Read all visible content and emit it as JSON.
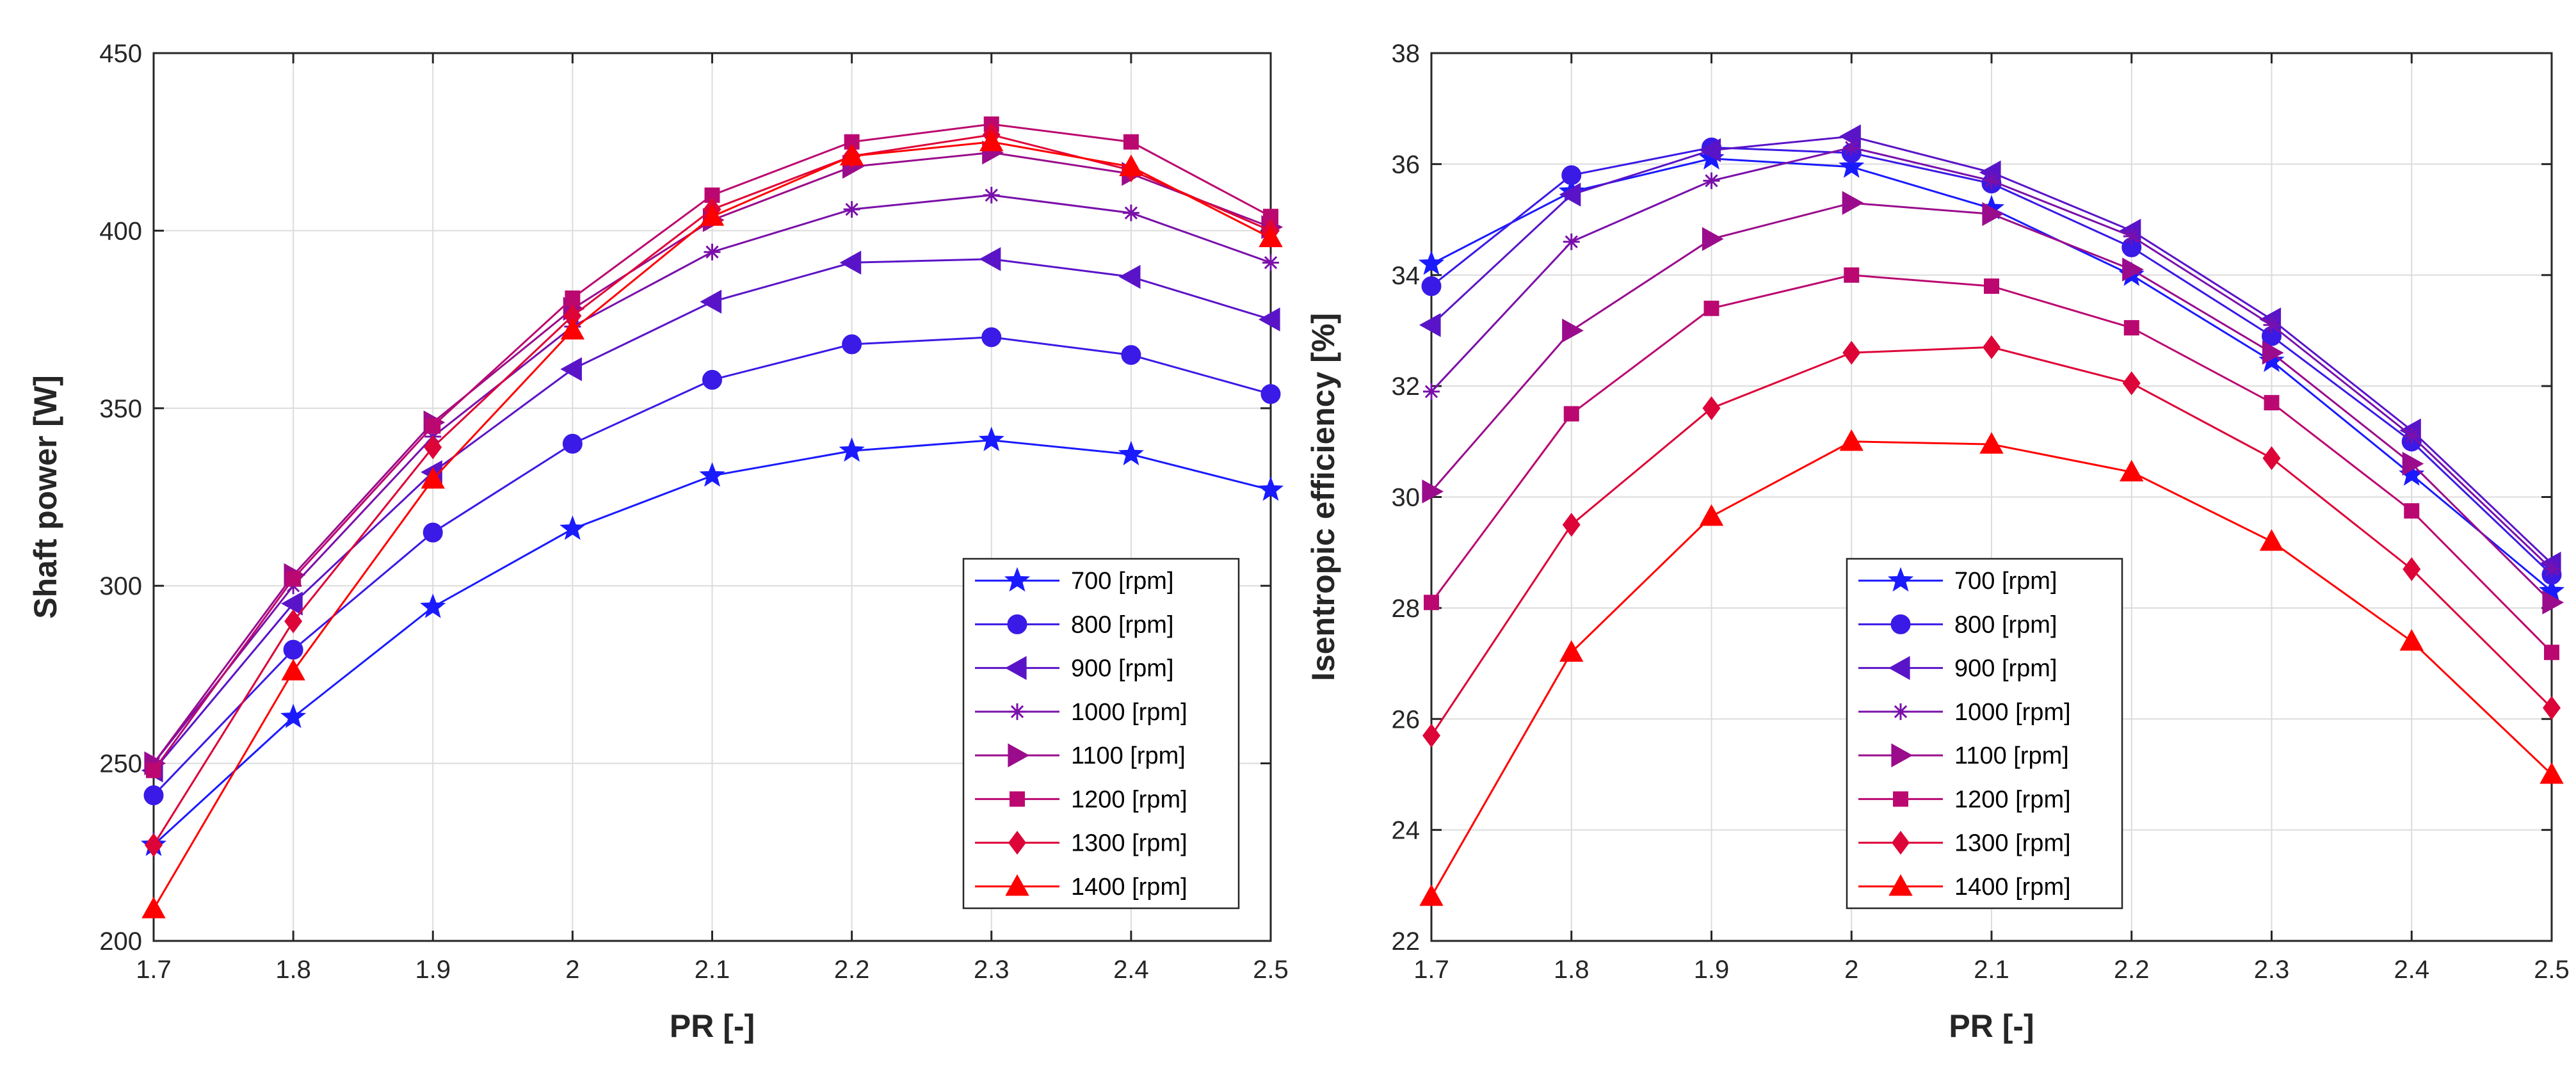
{
  "chart_data": [
    {
      "type": "line",
      "title": "",
      "xlabel": "PR [-]",
      "ylabel": "Shaft power [W]",
      "xlim": [
        1.7,
        2.5
      ],
      "ylim": [
        200,
        450
      ],
      "xticks": [
        1.7,
        1.8,
        1.9,
        2,
        2.1,
        2.2,
        2.3,
        2.4,
        2.5
      ],
      "yticks": [
        200,
        250,
        300,
        350,
        400,
        450
      ],
      "xtick_labels": [
        "1.7",
        "1.8",
        "1.9",
        "2",
        "2.1",
        "2.2",
        "2.3",
        "2.4",
        "2.5"
      ],
      "ytick_labels": [
        "200",
        "250",
        "300",
        "350",
        "400",
        "450"
      ],
      "grid": true,
      "legend_position": "bottom-right",
      "x": [
        1.7,
        1.8,
        1.9,
        2.0,
        2.1,
        2.2,
        2.3,
        2.4,
        2.5
      ],
      "series": [
        {
          "name": "700 [rpm]",
          "color": "#1a1aff",
          "marker": "star",
          "values": [
            227,
            263,
            294,
            316,
            331,
            338,
            341,
            337,
            327
          ]
        },
        {
          "name": "800 [rpm]",
          "color": "#3a1ae6",
          "marker": "circle",
          "values": [
            241,
            282,
            315,
            340,
            358,
            368,
            370,
            365,
            354
          ]
        },
        {
          "name": "900 [rpm]",
          "color": "#5a14c8",
          "marker": "triangle-left",
          "values": [
            248,
            295,
            332,
            361,
            380,
            391,
            392,
            387,
            375
          ]
        },
        {
          "name": "1000 [rpm]",
          "color": "#7a10aa",
          "marker": "asterisk",
          "values": [
            250,
            300,
            342,
            373,
            394,
            406,
            410,
            405,
            391
          ]
        },
        {
          "name": "1100 [rpm]",
          "color": "#9a0c8c",
          "marker": "triangle-right",
          "values": [
            250,
            303,
            346,
            378,
            403,
            418,
            422,
            416,
            401
          ]
        },
        {
          "name": "1200 [rpm]",
          "color": "#bb0870",
          "marker": "square",
          "values": [
            248,
            302,
            345,
            381,
            410,
            425,
            430,
            425,
            404
          ]
        },
        {
          "name": "1300 [rpm]",
          "color": "#dd0438",
          "marker": "diamond",
          "values": [
            227,
            290,
            339,
            376,
            406,
            421,
            427,
            417,
            400
          ]
        },
        {
          "name": "1400 [rpm]",
          "color": "#ff0000",
          "marker": "triangle-up",
          "values": [
            209,
            276,
            330,
            372,
            404,
            421,
            425,
            418,
            398
          ]
        }
      ]
    },
    {
      "type": "line",
      "title": "",
      "xlabel": "PR [-]",
      "ylabel": "Isentropic efficiency [%]",
      "xlim": [
        1.7,
        2.5
      ],
      "ylim": [
        22,
        38
      ],
      "xticks": [
        1.7,
        1.8,
        1.9,
        2,
        2.1,
        2.2,
        2.3,
        2.4,
        2.5
      ],
      "yticks": [
        22,
        24,
        26,
        28,
        30,
        32,
        34,
        36,
        38
      ],
      "xtick_labels": [
        "1.7",
        "1.8",
        "1.9",
        "2",
        "2.1",
        "2.2",
        "2.3",
        "2.4",
        "2.5"
      ],
      "ytick_labels": [
        "22",
        "24",
        "26",
        "28",
        "30",
        "32",
        "34",
        "36",
        "38"
      ],
      "grid": true,
      "legend_position": "bottom-center",
      "x": [
        1.7,
        1.8,
        1.9,
        2.0,
        2.1,
        2.2,
        2.3,
        2.4,
        2.5
      ],
      "series": [
        {
          "name": "700 [rpm]",
          "color": "#1a1aff",
          "marker": "star",
          "values": [
            34.2,
            35.5,
            36.1,
            35.95,
            35.2,
            34.0,
            32.45,
            30.4,
            28.3
          ]
        },
        {
          "name": "800 [rpm]",
          "color": "#3a1ae6",
          "marker": "circle",
          "values": [
            33.8,
            35.8,
            36.3,
            36.2,
            35.65,
            34.5,
            32.9,
            31.0,
            28.6
          ]
        },
        {
          "name": "900 [rpm]",
          "color": "#5a14c8",
          "marker": "triangle-left",
          "values": [
            33.1,
            35.45,
            36.25,
            36.5,
            35.85,
            34.8,
            33.2,
            31.2,
            28.8
          ]
        },
        {
          "name": "1000 [rpm]",
          "color": "#7a10aa",
          "marker": "asterisk",
          "values": [
            31.9,
            34.6,
            35.7,
            36.3,
            35.7,
            34.7,
            33.1,
            31.1,
            28.7
          ]
        },
        {
          "name": "1100 [rpm]",
          "color": "#9a0c8c",
          "marker": "triangle-right",
          "values": [
            30.1,
            33.0,
            34.65,
            35.3,
            35.1,
            34.1,
            32.6,
            30.6,
            28.1
          ]
        },
        {
          "name": "1200 [rpm]",
          "color": "#bb0870",
          "marker": "square",
          "values": [
            28.1,
            31.5,
            33.4,
            34.0,
            33.8,
            33.05,
            31.7,
            29.75,
            27.2
          ]
        },
        {
          "name": "1300 [rpm]",
          "color": "#dd0438",
          "marker": "diamond",
          "values": [
            25.7,
            29.5,
            31.6,
            32.6,
            32.7,
            32.05,
            30.7,
            28.7,
            26.2
          ]
        },
        {
          "name": "1400 [rpm]",
          "color": "#ff0000",
          "marker": "triangle-up",
          "values": [
            22.8,
            27.2,
            29.65,
            31.0,
            30.95,
            30.45,
            29.2,
            27.4,
            25.0
          ]
        }
      ]
    }
  ]
}
